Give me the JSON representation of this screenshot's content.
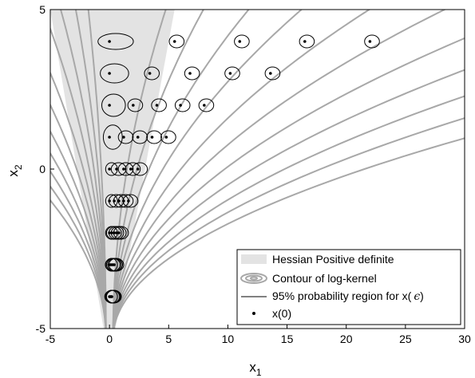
{
  "chart_data": {
    "type": "scatter",
    "title": "",
    "xlabel": {
      "base": "x",
      "sub": "1"
    },
    "ylabel": {
      "base": "x",
      "sub": "2"
    },
    "xlim": [
      -5,
      30
    ],
    "ylim": [
      -5,
      5
    ],
    "xticks": [
      -5,
      0,
      5,
      10,
      15,
      20,
      25,
      30
    ],
    "yticks": [
      -5,
      0,
      5
    ],
    "grid": false,
    "legend_position": "bottom-right",
    "legend": [
      {
        "label": "Hessian Positive definite",
        "kind": "patch"
      },
      {
        "label": "Contour of log-kernel",
        "kind": "contour"
      },
      {
        "label": "95% probability region for x(",
        "symbol": "ϵ",
        "close": ")",
        "kind": "line"
      },
      {
        "label": "x(0)",
        "kind": "dot"
      }
    ],
    "colors": {
      "hessian_fill": "#e3e3e3",
      "contour": "#a8a8a8",
      "ellipse": "#000000",
      "dot": "#000000"
    },
    "hessian_region": [
      [
        -5,
        5
      ],
      [
        5.5,
        5
      ],
      [
        0.5,
        -5
      ],
      [
        -0.5,
        -5
      ]
    ],
    "contour_parameters": [
      0.35,
      0.6,
      0.9,
      1.25,
      1.7,
      2.2,
      2.8,
      3.5,
      4.3,
      5.2,
      6.3
    ],
    "x0_points": [
      {
        "x": 0,
        "y": 4,
        "ellipses": [
          [
            1.5,
            0.25
          ],
          [
            4.0,
            0.2
          ],
          [
            7.0,
            0.2
          ],
          [
            10.0,
            0.18
          ],
          [
            13.5,
            0.18
          ],
          [
            17.0,
            0.15
          ]
        ]
      },
      {
        "x": 5.5,
        "y": 4
      },
      {
        "x": 11,
        "y": 4
      },
      {
        "x": 16.5,
        "y": 4
      },
      {
        "x": 22,
        "y": 4
      },
      {
        "x": 0,
        "y": 3,
        "ellipses": [
          [
            1.2,
            0.3
          ],
          [
            3.0,
            0.25
          ],
          [
            5.0,
            0.22
          ],
          [
            7.5,
            0.2
          ]
        ]
      },
      {
        "x": 3.4,
        "y": 3
      },
      {
        "x": 6.8,
        "y": 3
      },
      {
        "x": 10.2,
        "y": 3
      },
      {
        "x": 13.6,
        "y": 3
      },
      {
        "x": 0,
        "y": 2,
        "ellipses": [
          [
            1.0,
            0.35
          ],
          [
            2.3,
            0.28
          ],
          [
            3.8,
            0.25
          ],
          [
            5.0,
            0.22
          ]
        ]
      },
      {
        "x": 2,
        "y": 2
      },
      {
        "x": 4,
        "y": 2
      },
      {
        "x": 6,
        "y": 2
      },
      {
        "x": 8,
        "y": 2
      },
      {
        "x": 0,
        "y": 1,
        "ellipses": [
          [
            0.8,
            0.38
          ],
          [
            1.7,
            0.3
          ],
          [
            2.6,
            0.28
          ],
          [
            3.3,
            0.25
          ]
        ]
      },
      {
        "x": 1.2,
        "y": 1
      },
      {
        "x": 2.4,
        "y": 1
      },
      {
        "x": 3.6,
        "y": 1
      },
      {
        "x": 4.8,
        "y": 1
      },
      {
        "x": 0,
        "y": 0
      },
      {
        "x": 0.6,
        "y": 0
      },
      {
        "x": 1.2,
        "y": 0
      },
      {
        "x": 1.8,
        "y": 0
      },
      {
        "x": 2.4,
        "y": 0
      },
      {
        "x": 0,
        "y": -1
      },
      {
        "x": 0.4,
        "y": -1
      },
      {
        "x": 0.8,
        "y": -1
      },
      {
        "x": 1.2,
        "y": -1
      },
      {
        "x": 1.6,
        "y": -1
      },
      {
        "x": 0,
        "y": -2
      },
      {
        "x": 0.2,
        "y": -2
      },
      {
        "x": 0.4,
        "y": -2
      },
      {
        "x": 0.6,
        "y": -2
      },
      {
        "x": 0.8,
        "y": -2
      },
      {
        "x": 0,
        "y": -3
      },
      {
        "x": 0.1,
        "y": -3
      },
      {
        "x": 0.2,
        "y": -3
      },
      {
        "x": 0.3,
        "y": -3
      },
      {
        "x": 0.4,
        "y": -3
      },
      {
        "x": 0,
        "y": -4
      },
      {
        "x": 0.05,
        "y": -4
      },
      {
        "x": 0.1,
        "y": -4
      },
      {
        "x": 0.15,
        "y": -4
      },
      {
        "x": 0.2,
        "y": -4
      }
    ]
  }
}
